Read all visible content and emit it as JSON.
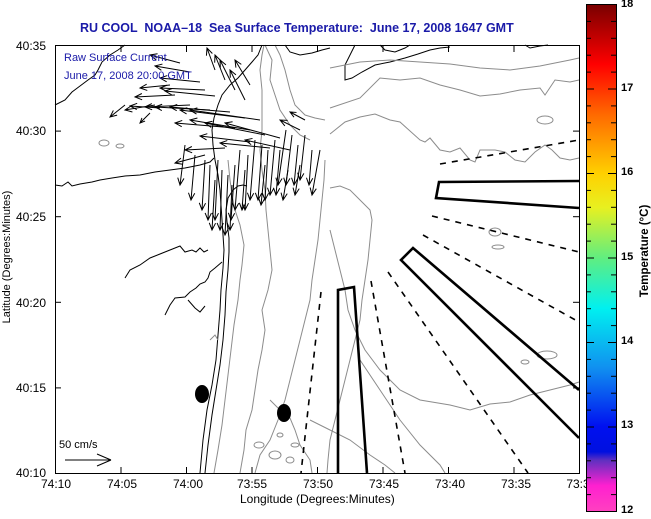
{
  "header": {
    "title": "RU COOL  NOAA–18  Sea Surface Temperature:  June 17, 2008 1647 GMT"
  },
  "overlay": {
    "subtitle_line1": "Raw Surface Current",
    "subtitle_line2": "June 17, 2008 20:00 GMT",
    "scale_label": "50 cm/s",
    "scale_arrow_speed_cm_s": 50
  },
  "axes": {
    "xlabel": "Longitude (Degrees:Minutes)",
    "ylabel": "Latitude (Degrees:Minutes)",
    "xticks": [
      "74:10",
      "74:05",
      "74:00",
      "73:55",
      "73:50",
      "73:45",
      "73:40",
      "73:35",
      "73:3"
    ],
    "yticks": [
      "40:35",
      "40:30",
      "40:25",
      "40:20",
      "40:15",
      "40:10"
    ],
    "lon_range_minutes_west": [
      74.1667,
      73.5
    ],
    "lat_range": [
      40.1667,
      40.5833
    ]
  },
  "colorbar": {
    "label": "Temperature (°C)",
    "ticks": [
      "18",
      "17",
      "16",
      "15",
      "14",
      "13",
      "12"
    ],
    "range": [
      12,
      18
    ],
    "stops": [
      {
        "value": 18,
        "color": "#7a0000"
      },
      {
        "value": 17.3,
        "color": "#ff0000"
      },
      {
        "value": 16.7,
        "color": "#ff6a00"
      },
      {
        "value": 16,
        "color": "#ffd000"
      },
      {
        "value": 15.6,
        "color": "#e8f020"
      },
      {
        "value": 15,
        "color": "#60ee80"
      },
      {
        "value": 14.4,
        "color": "#00f0f0"
      },
      {
        "value": 13.7,
        "color": "#1090f0"
      },
      {
        "value": 13.0,
        "color": "#0010f0"
      },
      {
        "value": 12.7,
        "color": "#0010e0"
      },
      {
        "value": 12.6,
        "color": "#6030c0"
      },
      {
        "value": 12.3,
        "color": "#ff20d0"
      },
      {
        "value": 12,
        "color": "#ff40c0"
      }
    ]
  },
  "map_features": {
    "buoys": [
      {
        "name": "buoy-1",
        "lon": "74:00",
        "lat": "40:14.7"
      },
      {
        "name": "buoy-2",
        "lon": "73:57.7",
        "lat": "40:13.5"
      }
    ],
    "solid_boxes": 3,
    "dashed_lines": 8
  },
  "colors": {
    "title": "#1a1aa8",
    "coast": "#000000",
    "bathymetry": "#8c8c8c",
    "vectors": "#000000"
  }
}
